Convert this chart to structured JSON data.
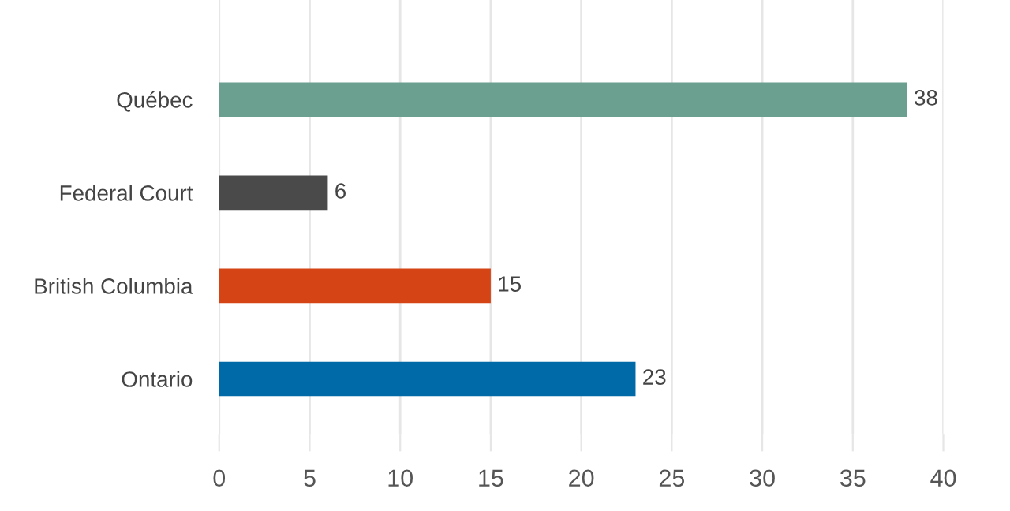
{
  "chart_data": {
    "type": "bar",
    "orientation": "horizontal",
    "categories": [
      "Québec",
      "Federal Court",
      "British Columbia",
      "Ontario"
    ],
    "values": [
      38,
      6,
      15,
      23
    ],
    "colors": [
      "#6b9f8f",
      "#4a4a4a",
      "#d54415",
      "#0069a8"
    ],
    "xlim": [
      0,
      40
    ],
    "xticks": [
      0,
      5,
      10,
      15,
      20,
      25,
      30,
      35,
      40
    ],
    "grid": "x",
    "data_labels": true
  }
}
